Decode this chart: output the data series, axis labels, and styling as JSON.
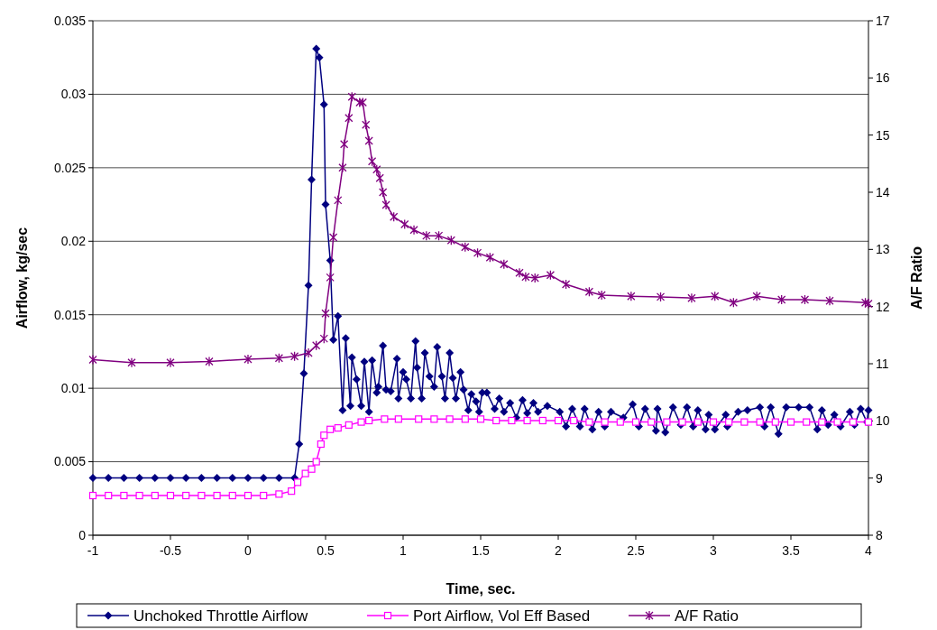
{
  "chart_data": {
    "type": "line",
    "xlabel": "Time, sec.",
    "ylabel": "Airflow, kg/sec",
    "y2label": "A/F Ratio",
    "xlim": [
      -1,
      4
    ],
    "xticks": [
      -1,
      -0.5,
      0,
      0.5,
      1,
      1.5,
      2,
      2.5,
      3,
      3.5,
      4
    ],
    "ylim": [
      0,
      0.035
    ],
    "yticks": [
      0,
      0.005,
      0.01,
      0.015,
      0.02,
      0.025,
      0.03,
      0.035
    ],
    "y2lim": [
      8,
      17
    ],
    "y2ticks": [
      8,
      9,
      10,
      11,
      12,
      13,
      14,
      15,
      16,
      17
    ],
    "grid": "y",
    "legend": "bottom",
    "series": [
      {
        "name": "Unchoked Throttle Airflow",
        "color": "#000080",
        "marker": "diamond",
        "x": [
          -1,
          -0.9,
          -0.8,
          -0.7,
          -0.6,
          -0.5,
          -0.4,
          -0.3,
          -0.2,
          -0.1,
          0,
          0.1,
          0.2,
          0.3,
          0.33,
          0.36,
          0.39,
          0.41,
          0.44,
          0.46,
          0.49,
          0.5,
          0.53,
          0.55,
          0.58,
          0.61,
          0.63,
          0.66,
          0.67,
          0.7,
          0.73,
          0.75,
          0.78,
          0.8,
          0.83,
          0.84,
          0.87,
          0.89,
          0.92,
          0.96,
          0.97,
          1,
          1.02,
          1.05,
          1.08,
          1.09,
          1.12,
          1.14,
          1.17,
          1.2,
          1.22,
          1.25,
          1.27,
          1.3,
          1.32,
          1.34,
          1.37,
          1.39,
          1.42,
          1.44,
          1.47,
          1.49,
          1.51,
          1.54,
          1.59,
          1.62,
          1.65,
          1.69,
          1.73,
          1.77,
          1.8,
          1.84,
          1.87,
          1.93,
          2.01,
          2.05,
          2.09,
          2.14,
          2.17,
          2.22,
          2.26,
          2.3,
          2.34,
          2.42,
          2.48,
          2.52,
          2.56,
          2.63,
          2.64,
          2.69,
          2.74,
          2.79,
          2.83,
          2.87,
          2.9,
          2.95,
          2.97,
          3.01,
          3.08,
          3.09,
          3.16,
          3.22,
          3.3,
          3.33,
          3.37,
          3.42,
          3.47,
          3.55,
          3.62,
          3.67,
          3.7,
          3.74,
          3.78,
          3.82,
          3.88,
          3.91,
          3.95,
          3.99,
          4
        ],
        "values": [
          0.0039,
          0.0039,
          0.0039,
          0.0039,
          0.0039,
          0.0039,
          0.0039,
          0.0039,
          0.0039,
          0.0039,
          0.0039,
          0.0039,
          0.0039,
          0.0039,
          0.0062,
          0.011,
          0.017,
          0.0242,
          0.0331,
          0.0325,
          0.0293,
          0.0225,
          0.0187,
          0.0133,
          0.0149,
          0.0085,
          0.0134,
          0.0088,
          0.0121,
          0.0106,
          0.0088,
          0.0118,
          0.0084,
          0.0119,
          0.0097,
          0.0101,
          0.0129,
          0.0099,
          0.0098,
          0.012,
          0.0093,
          0.0111,
          0.0106,
          0.0093,
          0.0132,
          0.0114,
          0.0093,
          0.0124,
          0.0108,
          0.0101,
          0.0128,
          0.0108,
          0.0093,
          0.0124,
          0.0107,
          0.0093,
          0.0111,
          0.0099,
          0.0085,
          0.0096,
          0.0091,
          0.0084,
          0.0097,
          0.0097,
          0.0086,
          0.0093,
          0.0084,
          0.009,
          0.008,
          0.0092,
          0.0083,
          0.009,
          0.0084,
          0.0088,
          0.0084,
          0.0074,
          0.0086,
          0.0074,
          0.0086,
          0.0072,
          0.0084,
          0.0074,
          0.0084,
          0.008,
          0.0089,
          0.0074,
          0.0086,
          0.0071,
          0.0086,
          0.007,
          0.0087,
          0.0075,
          0.0087,
          0.0074,
          0.0085,
          0.0072,
          0.0082,
          0.0072,
          0.0082,
          0.0074,
          0.0084,
          0.0085,
          0.0087,
          0.0074,
          0.0087,
          0.0069,
          0.0087,
          0.0087,
          0.0087,
          0.0072,
          0.0085,
          0.0075,
          0.0082,
          0.0074,
          0.0084,
          0.0075,
          0.0086,
          0.0077,
          0.0085
        ]
      },
      {
        "name": "Port Airflow, Vol Eff Based",
        "color": "#ff00ff",
        "marker": "square",
        "x": [
          -1,
          -0.9,
          -0.8,
          -0.7,
          -0.6,
          -0.5,
          -0.4,
          -0.3,
          -0.2,
          -0.1,
          0,
          0.1,
          0.2,
          0.28,
          0.32,
          0.37,
          0.41,
          0.44,
          0.47,
          0.49,
          0.53,
          0.58,
          0.65,
          0.73,
          0.78,
          0.88,
          0.97,
          1.1,
          1.2,
          1.3,
          1.4,
          1.5,
          1.6,
          1.7,
          1.8,
          1.9,
          2,
          2.1,
          2.2,
          2.3,
          2.4,
          2.5,
          2.6,
          2.7,
          2.8,
          2.9,
          3,
          3.1,
          3.2,
          3.3,
          3.4,
          3.5,
          3.6,
          3.7,
          3.8,
          3.9,
          4
        ],
        "values": [
          0.0027,
          0.0027,
          0.0027,
          0.0027,
          0.0027,
          0.0027,
          0.0027,
          0.0027,
          0.0027,
          0.0027,
          0.0027,
          0.0027,
          0.0028,
          0.003,
          0.0036,
          0.0042,
          0.0045,
          0.005,
          0.0062,
          0.0068,
          0.0072,
          0.0073,
          0.0075,
          0.0077,
          0.0078,
          0.0079,
          0.0079,
          0.0079,
          0.0079,
          0.0079,
          0.0079,
          0.0079,
          0.0078,
          0.0078,
          0.0078,
          0.0078,
          0.0078,
          0.0078,
          0.0077,
          0.0077,
          0.0077,
          0.0077,
          0.0077,
          0.0077,
          0.0077,
          0.0077,
          0.0077,
          0.0077,
          0.0077,
          0.0077,
          0.0077,
          0.0077,
          0.0077,
          0.0077,
          0.0077,
          0.0077,
          0.0077
        ]
      },
      {
        "name": "A/F Ratio",
        "color": "#800080",
        "marker": "cross",
        "axis": "y2",
        "x": [
          -1,
          -0.75,
          -0.5,
          -0.25,
          0,
          0.2,
          0.3,
          0.39,
          0.44,
          0.49,
          0.5,
          0.53,
          0.55,
          0.58,
          0.61,
          0.62,
          0.65,
          0.67,
          0.72,
          0.74,
          0.76,
          0.78,
          0.8,
          0.83,
          0.85,
          0.87,
          0.89,
          0.94,
          1.01,
          1.07,
          1.15,
          1.23,
          1.31,
          1.4,
          1.48,
          1.56,
          1.65,
          1.75,
          1.79,
          1.85,
          1.95,
          2.05,
          2.2,
          2.28,
          2.47,
          2.66,
          2.86,
          3.01,
          3.13,
          3.28,
          3.44,
          3.59,
          3.75,
          3.98,
          4
        ],
        "values": [
          11.07,
          11.02,
          11.02,
          11.04,
          11.08,
          11.1,
          11.13,
          11.19,
          11.32,
          11.44,
          11.88,
          12.51,
          13.21,
          13.86,
          14.43,
          14.84,
          15.3,
          15.67,
          15.57,
          15.57,
          15.18,
          14.9,
          14.54,
          14.4,
          14.25,
          14,
          13.78,
          13.57,
          13.44,
          13.34,
          13.24,
          13.24,
          13.16,
          13.04,
          12.94,
          12.86,
          12.74,
          12.59,
          12.52,
          12.5,
          12.55,
          12.39,
          12.26,
          12.2,
          12.18,
          12.17,
          12.15,
          12.18,
          12.07,
          12.18,
          12.12,
          12.12,
          12.1,
          12.07,
          12.05
        ]
      }
    ]
  }
}
